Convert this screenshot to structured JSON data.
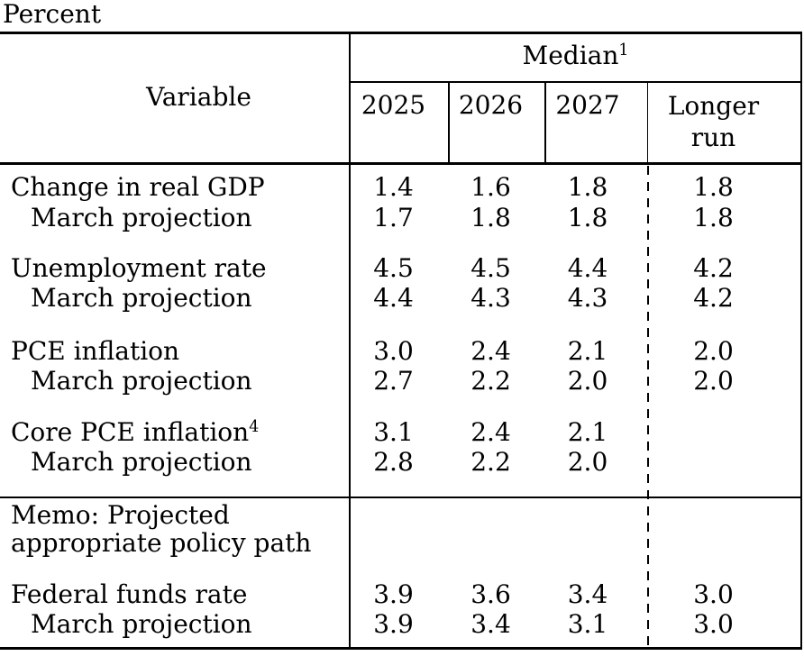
{
  "unit_label": "Percent",
  "colors": {
    "text": "#000000",
    "background": "#ffffff",
    "rule": "#000000"
  },
  "table": {
    "variable_header": "Variable",
    "median_header": {
      "text": "Median",
      "superscript": "1"
    },
    "year_headers": [
      "2025",
      "2026",
      "2027"
    ],
    "longer_run_lines": [
      "Longer",
      "run"
    ],
    "rows": [
      {
        "label": "Change in real GDP",
        "indent": false,
        "values": [
          "1.4",
          "1.6",
          "1.8",
          "1.8"
        ]
      },
      {
        "label": "March projection",
        "indent": true,
        "values": [
          "1.7",
          "1.8",
          "1.8",
          "1.8"
        ]
      },
      {
        "label": "Unemployment rate",
        "indent": false,
        "values": [
          "4.5",
          "4.5",
          "4.4",
          "4.2"
        ]
      },
      {
        "label": "March projection",
        "indent": true,
        "values": [
          "4.4",
          "4.3",
          "4.3",
          "4.2"
        ]
      },
      {
        "label": "PCE inflation",
        "indent": false,
        "values": [
          "3.0",
          "2.4",
          "2.1",
          "2.0"
        ]
      },
      {
        "label": "March projection",
        "indent": true,
        "values": [
          "2.7",
          "2.2",
          "2.0",
          "2.0"
        ]
      },
      {
        "label": "Core PCE inflation",
        "superscript": "4",
        "indent": false,
        "values": [
          "3.1",
          "2.4",
          "2.1",
          ""
        ]
      },
      {
        "label": "March projection",
        "indent": true,
        "values": [
          "2.8",
          "2.2",
          "2.0",
          ""
        ]
      },
      {
        "label": "Federal funds rate",
        "indent": false,
        "values": [
          "3.9",
          "3.6",
          "3.4",
          "3.0"
        ]
      },
      {
        "label": "March projection",
        "indent": true,
        "values": [
          "3.9",
          "3.4",
          "3.1",
          "3.0"
        ]
      }
    ],
    "memo_lines": [
      "Memo: Projected",
      "appropriate policy path"
    ]
  }
}
